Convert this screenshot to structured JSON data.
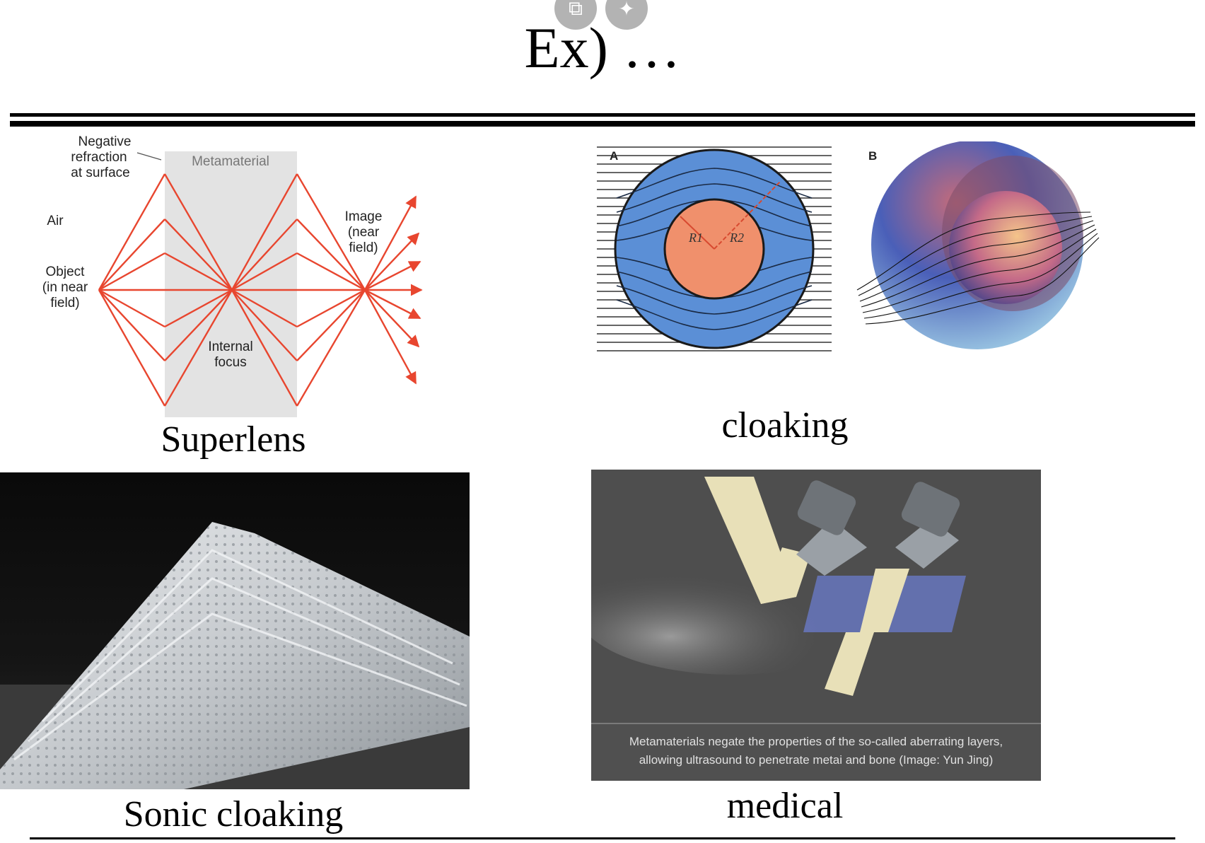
{
  "slide": {
    "title": "Ex) …"
  },
  "viewer_controls": {
    "open_external_icon": "external-link-icon",
    "sparkle_icon": "sparkle-icon"
  },
  "panels": {
    "superlens": {
      "caption": "Superlens",
      "diagram": {
        "label_negative_refraction": [
          "Negative",
          "refraction",
          "at surface"
        ],
        "label_metamaterial": "Metamaterial",
        "label_air": "Air",
        "label_object": [
          "Object",
          "(in near",
          "field)"
        ],
        "label_image": [
          "Image",
          "(near",
          "field)"
        ],
        "label_internal_focus": [
          "Internal",
          "focus"
        ],
        "ray_color": "#e8462f",
        "slab_color": "#e3e3e3"
      }
    },
    "cloaking": {
      "caption": "cloaking",
      "label_a": "A",
      "label_b": "B",
      "label_r1": "R1",
      "label_r2": "R2",
      "shell_color": "#5b8fd6",
      "core_color": "#f0906c"
    },
    "sonic_cloaking": {
      "caption": "Sonic cloaking"
    },
    "medical": {
      "caption": "medical",
      "image_caption_line1": "Metamaterials negate the properties of the so-called aberrating layers,",
      "image_caption_line2": "allowing ultrasound to penetrate metai and bone (Image: Yun Jing)"
    }
  }
}
